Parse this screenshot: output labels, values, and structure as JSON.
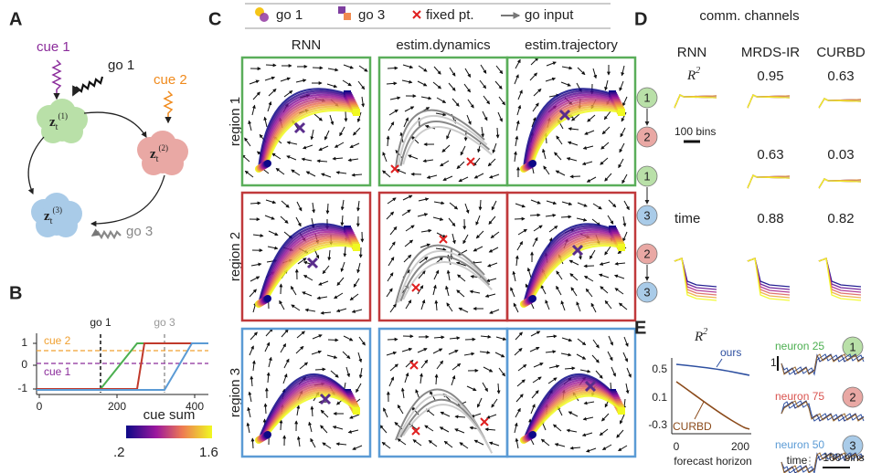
{
  "panel_a": {
    "letter": "A",
    "cue_1": "cue 1",
    "cue_2": "cue 2",
    "go_1": "go 1",
    "go_3": "go 3",
    "nodes": [
      {
        "symbol": "z",
        "sub": "t",
        "sup": "(1)"
      },
      {
        "symbol": "z",
        "sub": "t",
        "sup": "(2)"
      },
      {
        "symbol": "z",
        "sub": "t",
        "sup": "(3)"
      }
    ]
  },
  "panel_b": {
    "letter": "B",
    "go_1": "go 1",
    "go_3": "go 3",
    "cue_2": "cue 2",
    "cue_1": "cue 1",
    "yticks": [
      1,
      0,
      -1
    ],
    "xticks": [
      0,
      200,
      400
    ],
    "colorbar_title": "cue sum",
    "colorbar_ticks": [
      ".2",
      "1.6"
    ]
  },
  "panel_c": {
    "letter": "C",
    "legend": [
      "go 1",
      "go 3",
      "fixed pt.",
      "go input"
    ],
    "columns": [
      "RNN",
      "estim.dynamics",
      "estim.trajectory"
    ],
    "rows": [
      "region 1",
      "region 2",
      "region 3"
    ]
  },
  "panel_d": {
    "letter": "D",
    "title": "comm. channels",
    "columns": [
      "RNN",
      "MRDS-IR",
      "CURBD"
    ],
    "r2": {
      "base": "R",
      "sup": "2"
    },
    "time": "time",
    "scale": "100 bins",
    "channels": [
      {
        "from": "1",
        "to": "2",
        "values": [
          "0.95",
          "0.63"
        ]
      },
      {
        "from": "1",
        "to": "3",
        "values": [
          "0.63",
          "0.03"
        ]
      },
      {
        "from": "2",
        "to": "3",
        "values": [
          "0.88",
          "0.82"
        ]
      }
    ]
  },
  "panel_e": {
    "letter": "E",
    "r2": {
      "base": "R",
      "sup": "2"
    },
    "ours": "ours",
    "curbd": "CURBD",
    "yticks": [
      "0.5",
      "0.1",
      "-0.3"
    ],
    "xticks": [
      0,
      200
    ],
    "xlabel": "forecast horizon",
    "neurons": [
      {
        "name": "neuron 25",
        "region": "1"
      },
      {
        "name": "neuron 75",
        "region": "2"
      },
      {
        "name": "neuron 50",
        "region": "3"
      }
    ],
    "scale_y": "1",
    "time": "time",
    "scale_x": "100 bins"
  }
}
